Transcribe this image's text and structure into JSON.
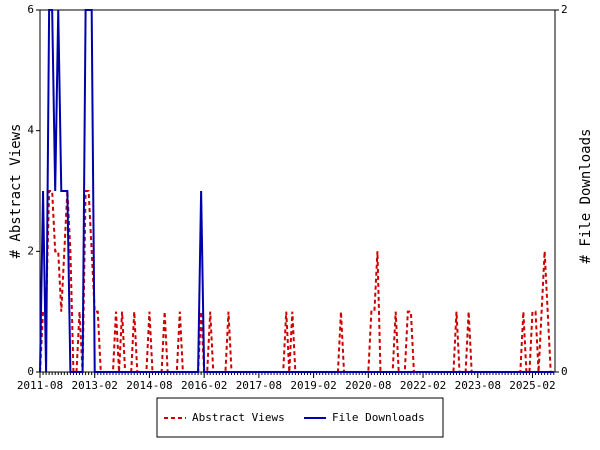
{
  "chart_data": {
    "type": "line",
    "y_label": "# Abstract Views",
    "y2_label": "# File Downloads",
    "x": [
      "2011-08",
      "2011-09",
      "2011-10",
      "2011-11",
      "2011-12",
      "2012-01",
      "2012-02",
      "2012-03",
      "2012-04",
      "2012-05",
      "2012-06",
      "2012-07",
      "2012-08",
      "2012-09",
      "2012-10",
      "2012-11",
      "2012-12",
      "2013-01",
      "2013-02",
      "2013-03",
      "2013-04",
      "2013-05",
      "2013-06",
      "2013-07",
      "2013-08",
      "2013-09",
      "2013-10",
      "2013-11",
      "2013-12",
      "2014-01",
      "2014-02",
      "2014-03",
      "2014-04",
      "2014-05",
      "2014-06",
      "2014-07",
      "2014-08",
      "2014-09",
      "2014-10",
      "2014-11",
      "2014-12",
      "2015-01",
      "2015-02",
      "2015-03",
      "2015-04",
      "2015-05",
      "2015-06",
      "2015-07",
      "2015-08",
      "2015-09",
      "2015-10",
      "2015-11",
      "2015-12",
      "2016-01",
      "2016-02",
      "2016-03",
      "2016-04",
      "2016-05",
      "2016-06",
      "2016-07",
      "2016-08",
      "2016-09",
      "2016-10",
      "2016-11",
      "2016-12",
      "2017-01",
      "2017-02",
      "2017-03",
      "2017-04",
      "2017-05",
      "2017-06",
      "2017-07",
      "2017-08",
      "2017-09",
      "2017-10",
      "2017-11",
      "2017-12",
      "2018-01",
      "2018-02",
      "2018-03",
      "2018-04",
      "2018-05",
      "2018-06",
      "2018-07",
      "2018-08",
      "2018-09",
      "2018-10",
      "2018-11",
      "2018-12",
      "2019-01",
      "2019-02",
      "2019-03",
      "2019-04",
      "2019-05",
      "2019-06",
      "2019-07",
      "2019-08",
      "2019-09",
      "2019-10",
      "2019-11",
      "2019-12",
      "2020-01",
      "2020-02",
      "2020-03",
      "2020-04",
      "2020-05",
      "2020-06",
      "2020-07",
      "2020-08",
      "2020-09",
      "2020-10",
      "2020-11",
      "2020-12",
      "2021-01",
      "2021-02",
      "2021-03",
      "2021-04",
      "2021-05",
      "2021-06",
      "2021-07",
      "2021-08",
      "2021-09",
      "2021-10",
      "2021-11",
      "2021-12",
      "2022-01",
      "2022-02",
      "2022-03",
      "2022-04",
      "2022-05",
      "2022-06",
      "2022-07",
      "2022-08",
      "2022-09",
      "2022-10",
      "2022-11",
      "2022-12",
      "2023-01",
      "2023-02",
      "2023-03",
      "2023-04",
      "2023-05",
      "2023-06",
      "2023-07",
      "2023-08",
      "2023-09",
      "2023-10",
      "2023-11",
      "2023-12",
      "2024-01",
      "2024-02",
      "2024-03",
      "2024-04",
      "2024-05",
      "2024-06",
      "2024-07",
      "2024-08",
      "2024-09",
      "2024-10",
      "2024-11",
      "2024-12",
      "2025-01",
      "2025-02",
      "2025-03",
      "2025-04",
      "2025-05",
      "2025-06",
      "2025-07",
      "2025-08",
      "2025-09"
    ],
    "xticks": [
      "2011-08",
      "2013-02",
      "2014-08",
      "2016-02",
      "2017-08",
      "2019-02",
      "2020-08",
      "2022-02",
      "2023-08",
      "2025-02"
    ],
    "ylim": [
      0,
      6
    ],
    "yticks": [
      0,
      2,
      4,
      6
    ],
    "y2lim": [
      0,
      2
    ],
    "y2ticks": [
      0,
      2
    ],
    "series": [
      {
        "name": "Abstract Views",
        "color": "#cc0000",
        "dashed": true,
        "values": [
          0,
          1,
          1,
          3,
          3,
          2,
          2,
          1,
          2,
          3,
          2,
          0,
          0,
          1,
          0,
          3,
          3,
          2,
          1,
          1,
          0,
          0,
          0,
          0,
          0,
          1,
          0,
          1,
          0,
          0,
          0,
          1,
          0,
          0,
          0,
          0,
          1,
          0,
          0,
          0,
          0,
          1,
          0,
          0,
          0,
          0,
          1,
          0,
          0,
          0,
          0,
          0,
          0,
          1,
          0,
          0,
          1,
          0,
          0,
          0,
          0,
          0,
          1,
          0,
          0,
          0,
          0,
          0,
          0,
          0,
          0,
          0,
          0,
          0,
          0,
          0,
          0,
          0,
          0,
          0,
          0,
          1,
          0,
          1,
          0,
          0,
          0,
          0,
          0,
          0,
          0,
          0,
          0,
          0,
          0,
          0,
          0,
          0,
          0,
          1,
          0,
          0,
          0,
          0,
          0,
          0,
          0,
          0,
          0,
          1,
          1,
          2,
          0,
          0,
          0,
          0,
          0,
          1,
          0,
          0,
          0,
          1,
          1,
          0,
          0,
          0,
          0,
          0,
          0,
          0,
          0,
          0,
          0,
          0,
          0,
          0,
          0,
          1,
          0,
          0,
          0,
          1,
          0,
          0,
          0,
          0,
          0,
          0,
          0,
          0,
          0,
          0,
          0,
          0,
          0,
          0,
          0,
          0,
          0,
          1,
          0,
          0,
          1,
          1,
          0,
          1,
          2,
          1,
          0,
          0
        ]
      },
      {
        "name": "File Downloads",
        "color": "#0000aa",
        "dashed": false,
        "axis": "y2",
        "values": [
          0,
          1,
          0,
          2,
          2,
          1,
          2,
          1,
          1,
          1,
          0,
          0,
          0,
          0,
          0,
          2,
          2,
          2,
          0,
          0,
          0,
          0,
          0,
          0,
          0,
          0,
          0,
          0,
          0,
          0,
          0,
          0,
          0,
          0,
          0,
          0,
          0,
          0,
          0,
          0,
          0,
          0,
          0,
          0,
          0,
          0,
          0,
          0,
          0,
          0,
          0,
          0,
          0,
          1,
          0,
          0,
          0,
          0,
          0,
          0,
          0,
          0,
          0,
          0,
          0,
          0,
          0,
          0,
          0,
          0,
          0,
          0,
          0,
          0,
          0,
          0,
          0,
          0,
          0,
          0,
          0,
          0,
          0,
          0,
          0,
          0,
          0,
          0,
          0,
          0,
          0,
          0,
          0,
          0,
          0,
          0,
          0,
          0,
          0,
          0,
          0,
          0,
          0,
          0,
          0,
          0,
          0,
          0,
          0,
          0,
          0,
          0,
          0,
          0,
          0,
          0,
          0,
          0,
          0,
          0,
          0,
          0,
          0,
          0,
          0,
          0,
          0,
          0,
          0,
          0,
          0,
          0,
          0,
          0,
          0,
          0,
          0,
          0,
          0,
          0,
          0,
          0,
          0,
          0,
          0,
          0,
          0,
          0,
          0,
          0,
          0,
          0,
          0,
          0,
          0,
          0,
          0,
          0,
          0,
          0,
          0,
          0,
          0,
          0,
          0,
          0,
          0,
          0,
          0,
          0
        ]
      }
    ]
  }
}
